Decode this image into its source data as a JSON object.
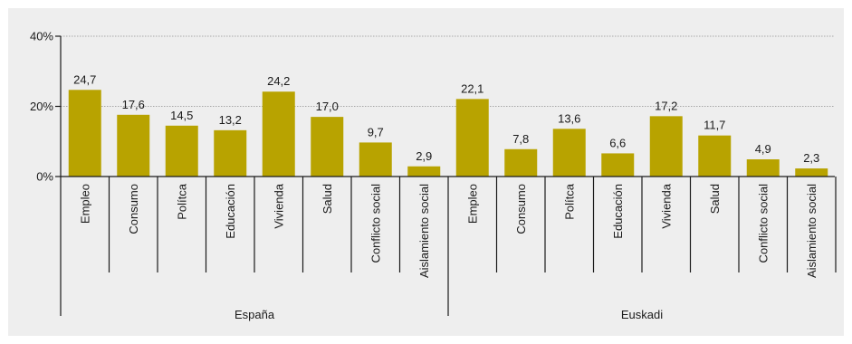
{
  "chart_data": {
    "type": "bar",
    "title": "",
    "xlabel": "",
    "ylabel": "",
    "ylim": [
      0,
      40
    ],
    "yticks": [
      0,
      20,
      40
    ],
    "ytick_labels": [
      "0%",
      "20%",
      "40%"
    ],
    "grid": true,
    "bar_color": "#b8a300",
    "groups": [
      {
        "name": "España",
        "categories": [
          "Empleo",
          "Consumo",
          "Polítca",
          "Educación",
          "Vivienda",
          "Salud",
          "Conflicto social",
          "Aislamiento social"
        ],
        "values": [
          24.7,
          17.6,
          14.5,
          13.2,
          24.2,
          17.0,
          9.7,
          2.9
        ],
        "value_labels": [
          "24,7",
          "17,6",
          "14,5",
          "13,2",
          "24,2",
          "17,0",
          "9,7",
          "2,9"
        ]
      },
      {
        "name": "Euskadi",
        "categories": [
          "Empleo",
          "Consumo",
          "Polítca",
          "Educación",
          "Vivienda",
          "Salud",
          "Conflicto social",
          "Aislamiento social"
        ],
        "values": [
          22.1,
          7.8,
          13.6,
          6.6,
          17.2,
          11.7,
          4.9,
          2.3
        ],
        "value_labels": [
          "22,1",
          "7,8",
          "13,6",
          "6,6",
          "17,2",
          "11,7",
          "4,9",
          "2,3"
        ]
      }
    ]
  }
}
